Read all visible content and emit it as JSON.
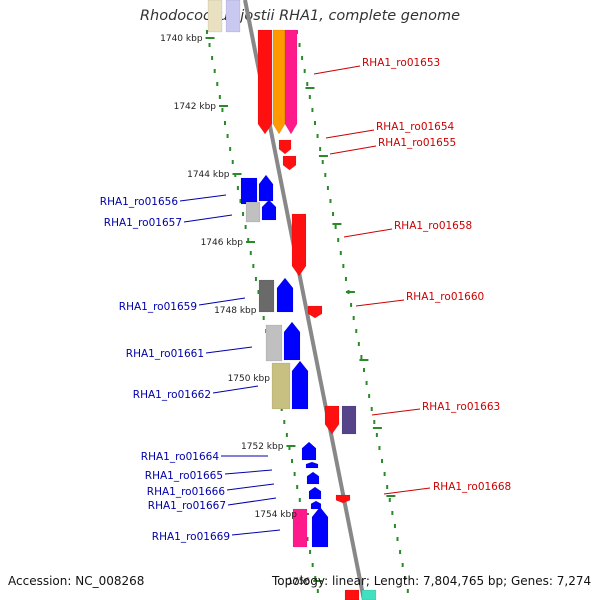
{
  "title": "Rhodococcus jostii RHA1, complete genome",
  "footer": {
    "accession": "Accession: NC_008268",
    "stats": "Topology: linear; Length: 7,804,765 bp; Genes: 7,274"
  },
  "colors": {
    "axis": "#888888",
    "ruler": "#2a8a2a",
    "forward_label": "#cc0000",
    "reverse_label": "#0000aa"
  },
  "ruler": [
    "1740 kbp",
    "1742 kbp",
    "1744 kbp",
    "1746 kbp",
    "1748 kbp",
    "1750 kbp",
    "1752 kbp",
    "1754 kbp",
    "1756"
  ],
  "forward_genes": [
    "RHA1_ro01653",
    "RHA1_ro01654",
    "RHA1_ro01655",
    "RHA1_ro01658",
    "RHA1_ro01660",
    "RHA1_ro01663",
    "RHA1_ro01668"
  ],
  "reverse_genes": [
    "RHA1_ro01656",
    "RHA1_ro01657",
    "RHA1_ro01659",
    "RHA1_ro01661",
    "RHA1_ro01662",
    "RHA1_ro01664",
    "RHA1_ro01665",
    "RHA1_ro01666",
    "RHA1_ro01667",
    "RHA1_ro01669"
  ]
}
